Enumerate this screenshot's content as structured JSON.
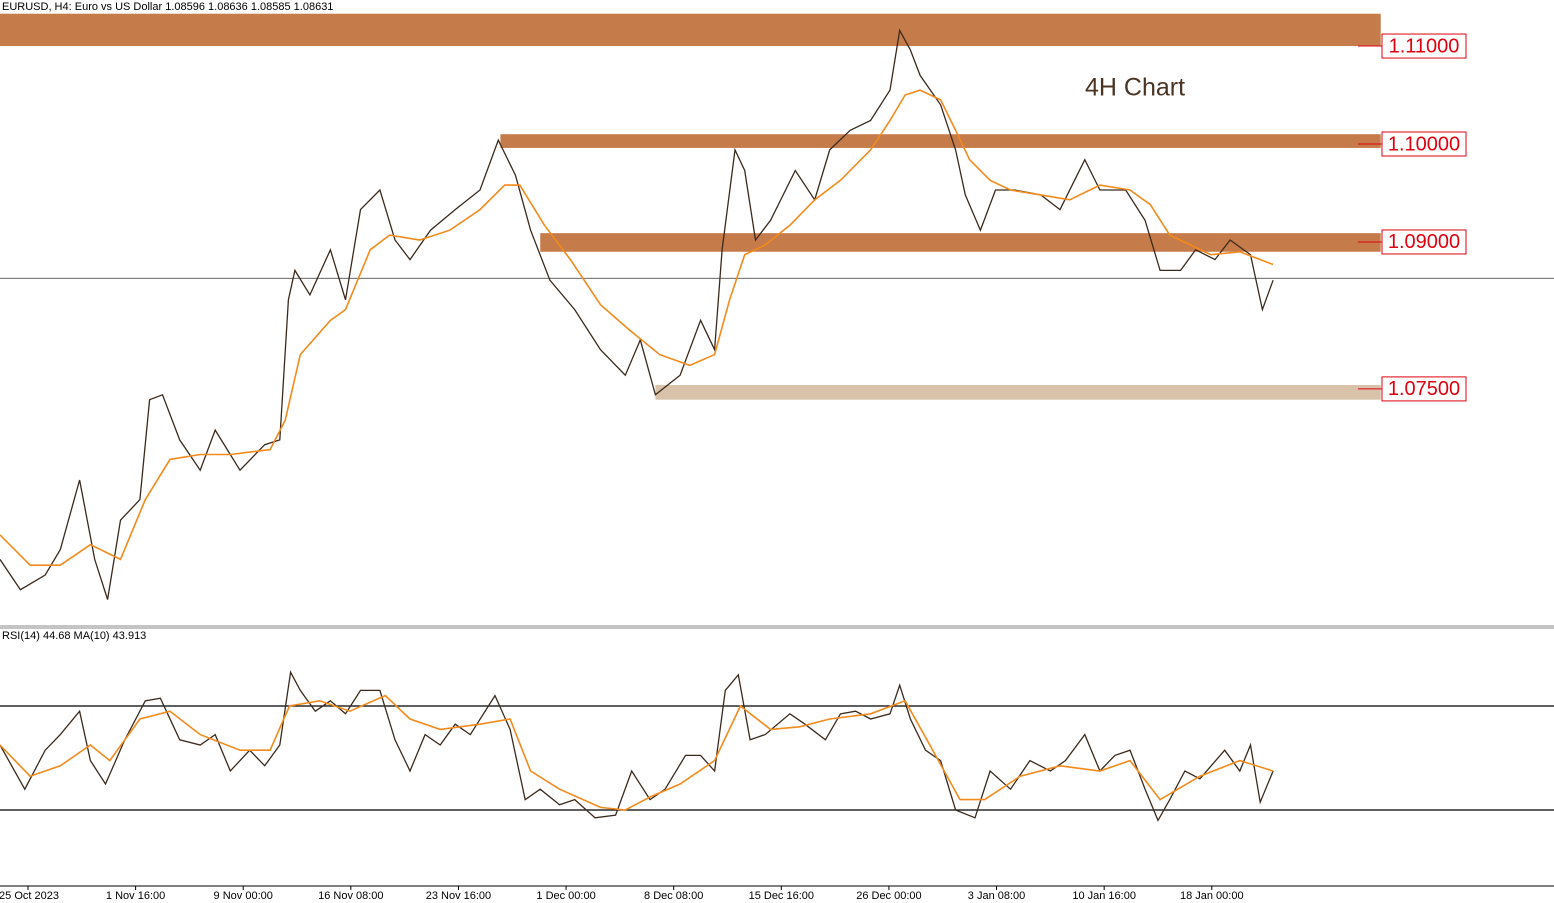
{
  "chart_data": [
    {
      "type": "line",
      "header": "EURUSD, H4:  Euro vs US Dollar  1.08596 1.08636 1.08585 1.08631",
      "annotation": "4H Chart",
      "xlim": [
        -0.26,
        14.18
      ],
      "ylim": [
        1.0509,
        1.1147
      ],
      "current_price": 1.0863,
      "zones": [
        {
          "from": -0.26,
          "to": 12.57,
          "low": 1.11,
          "high": 1.1133,
          "color": "#c67b4b",
          "level": {
            "value": 1.11,
            "label": "1.11000"
          }
        },
        {
          "from": 4.39,
          "to": 12.57,
          "low": 1.0996,
          "high": 1.101,
          "color": "#c67b4b",
          "level": {
            "value": 1.1,
            "label": "1.10000"
          }
        },
        {
          "from": 4.76,
          "to": 12.57,
          "low": 1.089,
          "high": 1.0909,
          "color": "#c67b4b",
          "level": {
            "value": 1.09,
            "label": "1.09000"
          }
        },
        {
          "from": 5.83,
          "to": 12.57,
          "low": 1.0739,
          "high": 1.0754,
          "color": "#d8c2aa",
          "level": {
            "value": 1.075,
            "label": "1.07500"
          }
        }
      ],
      "series": [
        {
          "color": "#3b2a1c",
          "x": [
            -0.26,
            -0.07,
            0.16,
            0.3,
            0.48,
            0.62,
            0.74,
            0.86,
            1.04,
            1.13,
            1.25,
            1.41,
            1.6,
            1.74,
            1.97,
            2.2,
            2.34,
            2.42,
            2.48,
            2.62,
            2.81,
            2.95,
            3.09,
            3.27,
            3.41,
            3.55,
            3.74,
            3.97,
            4.2,
            4.37,
            4.53,
            4.67,
            4.85,
            5.08,
            5.32,
            5.55,
            5.69,
            5.83,
            6.06,
            6.25,
            6.38,
            6.45,
            6.57,
            6.66,
            6.76,
            6.9,
            7.13,
            7.31,
            7.45,
            7.64,
            7.83,
            8.01,
            8.1,
            8.2,
            8.29,
            8.48,
            8.62,
            8.71,
            8.85,
            8.99,
            9.17,
            9.41,
            9.59,
            9.82,
            9.96,
            10.2,
            10.38,
            10.52,
            10.71,
            10.85,
            11.03,
            11.17,
            11.36,
            11.47,
            11.57
          ],
          "values": [
            1.0576,
            1.0545,
            1.056,
            1.0586,
            1.0657,
            1.0576,
            1.0535,
            1.0616,
            1.0637,
            1.0739,
            1.0744,
            1.0698,
            1.0667,
            1.0708,
            1.0667,
            1.0693,
            1.0698,
            1.0841,
            1.0871,
            1.0846,
            1.0892,
            1.0841,
            1.0933,
            1.0953,
            1.0902,
            1.0882,
            1.0912,
            1.0933,
            1.0953,
            1.1004,
            1.0968,
            1.0912,
            1.0861,
            1.0831,
            1.079,
            1.0764,
            1.08,
            1.0744,
            1.0764,
            1.082,
            1.079,
            1.0892,
            1.0994,
            1.0973,
            1.0902,
            1.0922,
            1.0973,
            1.0943,
            1.0994,
            1.1014,
            1.1024,
            1.1055,
            1.1116,
            1.1096,
            1.107,
            1.104,
            1.0994,
            1.0948,
            1.0912,
            1.0953,
            1.0953,
            1.0948,
            1.0933,
            1.0984,
            1.0953,
            1.0953,
            1.0922,
            1.0871,
            1.0871,
            1.0892,
            1.0882,
            1.0902,
            1.0887,
            1.0831,
            1.0861
          ]
        },
        {
          "color": "#f28a1c",
          "x": [
            -0.26,
            0.02,
            0.3,
            0.58,
            0.86,
            1.09,
            1.32,
            1.6,
            1.88,
            2.25,
            2.39,
            2.53,
            2.81,
            2.95,
            3.18,
            3.36,
            3.64,
            3.92,
            4.2,
            4.43,
            4.57,
            4.8,
            5.04,
            5.32,
            5.59,
            5.87,
            6.15,
            6.38,
            6.52,
            6.66,
            6.85,
            7.08,
            7.31,
            7.55,
            7.83,
            8.01,
            8.15,
            8.29,
            8.48,
            8.62,
            8.75,
            8.94,
            9.13,
            9.41,
            9.68,
            9.96,
            10.24,
            10.43,
            10.61,
            10.8,
            10.99,
            11.26,
            11.45,
            11.57
          ],
          "values": [
            1.0601,
            1.057,
            1.057,
            1.0591,
            1.0576,
            1.0637,
            1.0678,
            1.0683,
            1.0683,
            1.0688,
            1.0718,
            1.0785,
            1.082,
            1.0831,
            1.0892,
            1.0907,
            1.0902,
            1.0912,
            1.0933,
            1.0958,
            1.0958,
            1.0917,
            1.0882,
            1.0836,
            1.081,
            1.0785,
            1.0774,
            1.0785,
            1.0841,
            1.0887,
            1.0897,
            1.0917,
            1.0943,
            1.0963,
            1.0994,
            1.1024,
            1.105,
            1.1055,
            1.1045,
            1.1014,
            1.0984,
            1.0963,
            1.0953,
            1.0948,
            1.0943,
            1.0958,
            1.0953,
            1.0938,
            1.0907,
            1.0897,
            1.0887,
            1.089,
            1.0882,
            1.0877
          ]
        }
      ]
    },
    {
      "type": "line",
      "title": "RSI(14) 44.68 MA(10) 43.913",
      "xlim": [
        -0.26,
        14.18
      ],
      "ylim": [
        0,
        100
      ],
      "levels": [
        70,
        30
      ],
      "xticks": [
        {
          "value": 0,
          "label": "25 Oct 2023"
        },
        {
          "value": 1,
          "label": "1 Nov 16:00"
        },
        {
          "value": 2,
          "label": "9 Nov 00:00"
        },
        {
          "value": 3,
          "label": "16 Nov 08:00"
        },
        {
          "value": 4,
          "label": "23 Nov 16:00"
        },
        {
          "value": 5,
          "label": "1 Dec 00:00"
        },
        {
          "value": 6,
          "label": "8 Dec 08:00"
        },
        {
          "value": 7,
          "label": "15 Dec 16:00"
        },
        {
          "value": 8,
          "label": "26 Dec 00:00"
        },
        {
          "value": 9,
          "label": "3 Jan 08:00"
        },
        {
          "value": 10,
          "label": "10 Jan 16:00"
        },
        {
          "value": 11,
          "label": "18 Jan 00:00"
        }
      ],
      "series": [
        {
          "color": "#3b2a1c",
          "x": [
            -0.26,
            -0.03,
            0.16,
            0.3,
            0.48,
            0.58,
            0.72,
            0.9,
            1.09,
            1.23,
            1.41,
            1.6,
            1.74,
            1.88,
            2.06,
            2.2,
            2.34,
            2.44,
            2.53,
            2.67,
            2.81,
            2.95,
            3.09,
            3.27,
            3.41,
            3.55,
            3.69,
            3.83,
            3.97,
            4.11,
            4.34,
            4.48,
            4.62,
            4.76,
            4.94,
            5.08,
            5.27,
            5.46,
            5.61,
            5.78,
            5.92,
            6.11,
            6.25,
            6.38,
            6.48,
            6.6,
            6.71,
            6.85,
            7.08,
            7.22,
            7.41,
            7.55,
            7.69,
            7.83,
            8.01,
            8.1,
            8.2,
            8.34,
            8.48,
            8.62,
            8.8,
            8.94,
            9.13,
            9.31,
            9.5,
            9.64,
            9.82,
            9.96,
            10.1,
            10.24,
            10.38,
            10.5,
            10.61,
            10.75,
            10.89,
            11.12,
            11.26,
            11.36,
            11.45,
            11.57
          ],
          "values": [
            55,
            38,
            53,
            59,
            68,
            49,
            40,
            57,
            72,
            73,
            57,
            55,
            59,
            45,
            53,
            47,
            55,
            83,
            76,
            68,
            72,
            67,
            76,
            76,
            57,
            45,
            59,
            55,
            63,
            59,
            74,
            61,
            34,
            38,
            32,
            34,
            27,
            28,
            45,
            34,
            38,
            51,
            51,
            45,
            76,
            82,
            57,
            59,
            67,
            63,
            57,
            67,
            68,
            65,
            67,
            78,
            65,
            53,
            49,
            30,
            27,
            45,
            38,
            49,
            45,
            49,
            59,
            45,
            51,
            53,
            38,
            26,
            34,
            45,
            42,
            53,
            45,
            55,
            33,
            45
          ]
        },
        {
          "color": "#f28a1c",
          "x": [
            -0.26,
            0.02,
            0.3,
            0.58,
            0.76,
            1.04,
            1.32,
            1.6,
            1.97,
            2.25,
            2.43,
            2.71,
            2.99,
            3.32,
            3.55,
            3.83,
            4.2,
            4.48,
            4.67,
            4.94,
            5.32,
            5.55,
            5.78,
            6.06,
            6.38,
            6.62,
            6.9,
            7.17,
            7.45,
            7.83,
            8.15,
            8.38,
            8.66,
            8.89,
            9.22,
            9.59,
            9.96,
            10.24,
            10.52,
            10.89,
            11.26,
            11.57
          ],
          "values": [
            55,
            43,
            47,
            55,
            49,
            65,
            68,
            59,
            53,
            53,
            70,
            72,
            68,
            74,
            65,
            61,
            63,
            65,
            45,
            38,
            31,
            30,
            35,
            40,
            49,
            70,
            61,
            62,
            65,
            67,
            72,
            55,
            34,
            34,
            43,
            47,
            45,
            49,
            34,
            43,
            49,
            45
          ]
        }
      ]
    }
  ]
}
